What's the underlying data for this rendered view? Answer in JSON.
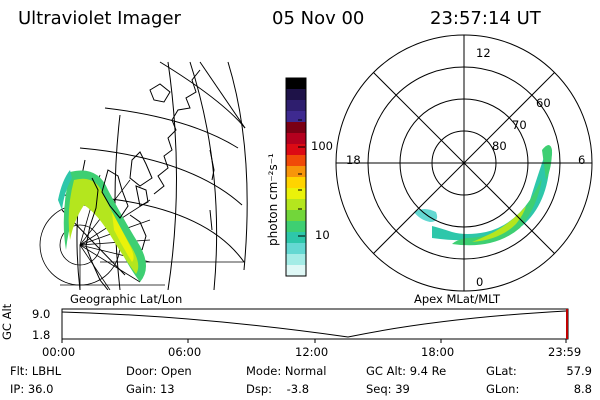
{
  "header": {
    "instrument": "Ultraviolet Imager",
    "date": "05 Nov 00",
    "time": "23:57:14 UT"
  },
  "geo_label": "Geographic Lat/Lon",
  "polar": {
    "label": "Apex MLat/MLT",
    "mlt_labels": [
      "12",
      "6",
      "0",
      "18"
    ],
    "lat_labels": [
      "60",
      "70",
      "80"
    ]
  },
  "colorbar": {
    "unit_label": "photon cm⁻²s⁻¹",
    "ticks": [
      "100",
      "10"
    ],
    "colors": [
      "#000000",
      "#1e1248",
      "#2e1e6e",
      "#3e2a90",
      "#7a0014",
      "#b4001e",
      "#dc0a14",
      "#f04a08",
      "#f7950a",
      "#ffd400",
      "#eaf20a",
      "#b4e61e",
      "#72d63a",
      "#3ecf72",
      "#2ec7aa",
      "#64d8d2",
      "#a4ece6",
      "#dff8f6"
    ]
  },
  "timeline": {
    "axis_label": "GC Alt",
    "y_max": "9.0",
    "y_min": "1.8",
    "ticks": [
      "00:00",
      "06:00",
      "12:00",
      "18:00",
      "23:59"
    ],
    "accent_color": "#c00000"
  },
  "info": {
    "flt": "Flt: LBHL",
    "ip": "IP: 36.0",
    "door": "Door: Open",
    "gain": "Gain: 13",
    "mode": "Mode: Normal",
    "dsp": "Dsp:    -3.8",
    "gcalt": "GC Alt: 9.4 Re",
    "seq": "Seq: 39",
    "glat_label": "GLat:",
    "glat_value": "57.9",
    "glon_label": "GLon:",
    "glon_value": "8.8"
  }
}
